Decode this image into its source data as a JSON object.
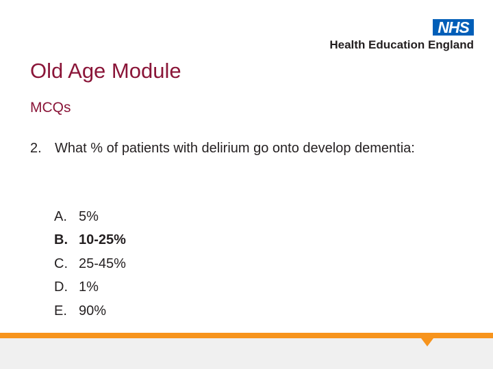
{
  "header": {
    "nhs_logo": "NHS",
    "organisation": "Health Education England"
  },
  "slide": {
    "title": "Old Age Module",
    "subtitle": "MCQs",
    "question_number": "2.",
    "question_text": "What % of patients with delirium go onto develop dementia:",
    "options": [
      {
        "letter": "A.",
        "text": "5%"
      },
      {
        "letter": "B.",
        "text": "10-25%",
        "highlighted": true
      },
      {
        "letter": "C.",
        "text": "25-45%"
      },
      {
        "letter": "D.",
        "text": "1%"
      },
      {
        "letter": "E.",
        "text": "90%"
      }
    ]
  },
  "colors": {
    "title": "#8a1538",
    "nhs_blue": "#005eb8",
    "footer_accent": "#f7941d",
    "footer_band": "#f0f0f0"
  }
}
